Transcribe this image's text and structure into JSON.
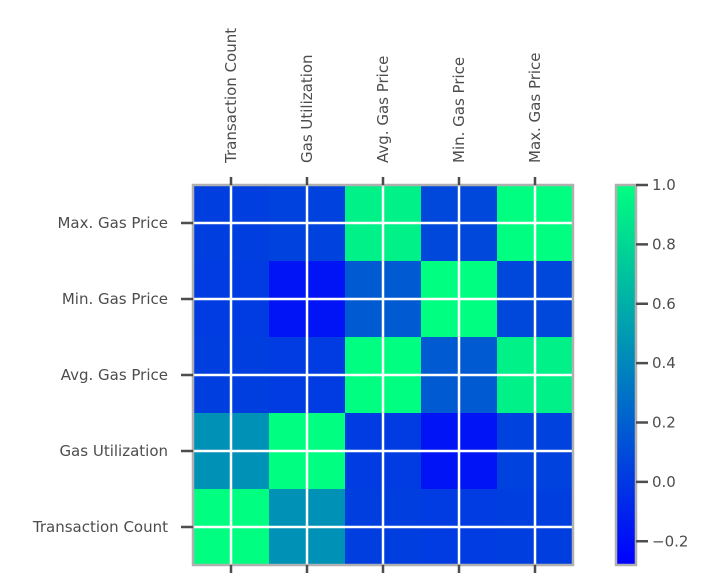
{
  "chart_data": {
    "type": "heatmap",
    "title": "",
    "x_labels": [
      "Transaction Count",
      "Gas Utilization",
      "Avg. Gas Price",
      "Min. Gas Price",
      "Max. Gas Price"
    ],
    "y_labels": [
      "Transaction Count",
      "Gas Utilization",
      "Avg. Gas Price",
      "Min. Gas Price",
      "Max. Gas Price"
    ],
    "x_label_position": "top",
    "matrix": [
      [
        1.0,
        0.45,
        0.03,
        0.02,
        0.03
      ],
      [
        0.45,
        1.0,
        0.02,
        -0.18,
        0.05
      ],
      [
        0.03,
        0.02,
        1.0,
        0.17,
        0.93
      ],
      [
        0.02,
        -0.18,
        0.17,
        1.0,
        0.08
      ],
      [
        0.03,
        0.05,
        0.93,
        0.08,
        1.0
      ]
    ],
    "colormap": "winter",
    "colormap_colors": [
      "#0000ff",
      "#00ff80"
    ],
    "colorbar_range": [
      -0.28,
      1.0
    ],
    "colorbar_ticks": [
      "1.0",
      "0.8",
      "0.6",
      "0.4",
      "0.2",
      "0.0",
      "−0.2"
    ],
    "colorbar_tick_values": [
      1.0,
      0.8,
      0.6,
      0.4,
      0.2,
      0.0,
      -0.2
    ],
    "grid": true,
    "legend": "colorbar-right"
  }
}
